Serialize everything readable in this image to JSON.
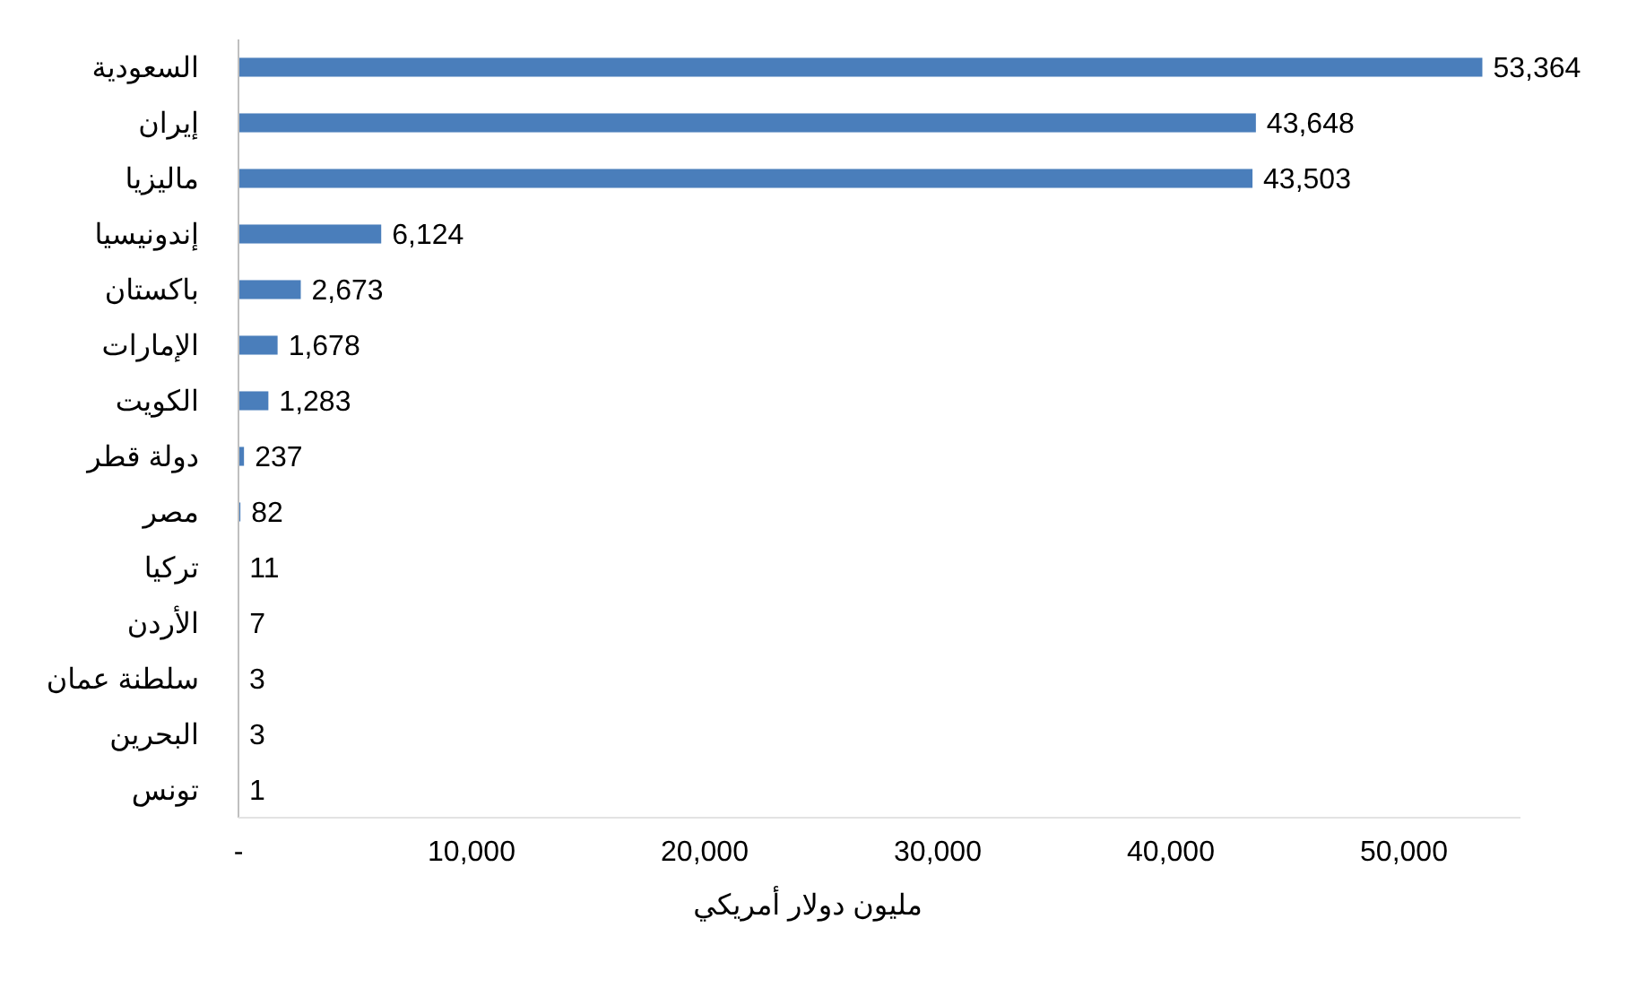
{
  "chart_data": {
    "type": "bar",
    "orientation": "horizontal",
    "xlabel": "مليون دولار أمريكي",
    "categories": [
      "السعودية",
      "إيران",
      "ماليزيا",
      "إندونيسيا",
      "باكستان",
      "الإمارات",
      "الكويت",
      "دولة قطر",
      "مصر",
      "تركيا",
      "الأردن",
      "سلطنة عمان",
      "البحرين",
      "تونس"
    ],
    "values": [
      53364,
      43648,
      43503,
      6124,
      2673,
      1678,
      1283,
      237,
      82,
      11,
      7,
      3,
      3,
      1
    ],
    "color": "#4a7ebb",
    "value_labels": [
      "53,364",
      "43,648",
      "43,503",
      "6,124",
      "2,673",
      "1,678",
      "1,283",
      "237",
      "82",
      "11",
      "7",
      "3",
      "3",
      "1"
    ],
    "xlim": [
      0,
      55000
    ],
    "xticks": [
      {
        "value": 0,
        "label": "-"
      },
      {
        "value": 10000,
        "label": "10,000"
      },
      {
        "value": 20000,
        "label": "20,000"
      },
      {
        "value": 30000,
        "label": "30,000"
      },
      {
        "value": 40000,
        "label": "40,000"
      },
      {
        "value": 50000,
        "label": "50,000"
      }
    ],
    "grid": false
  }
}
